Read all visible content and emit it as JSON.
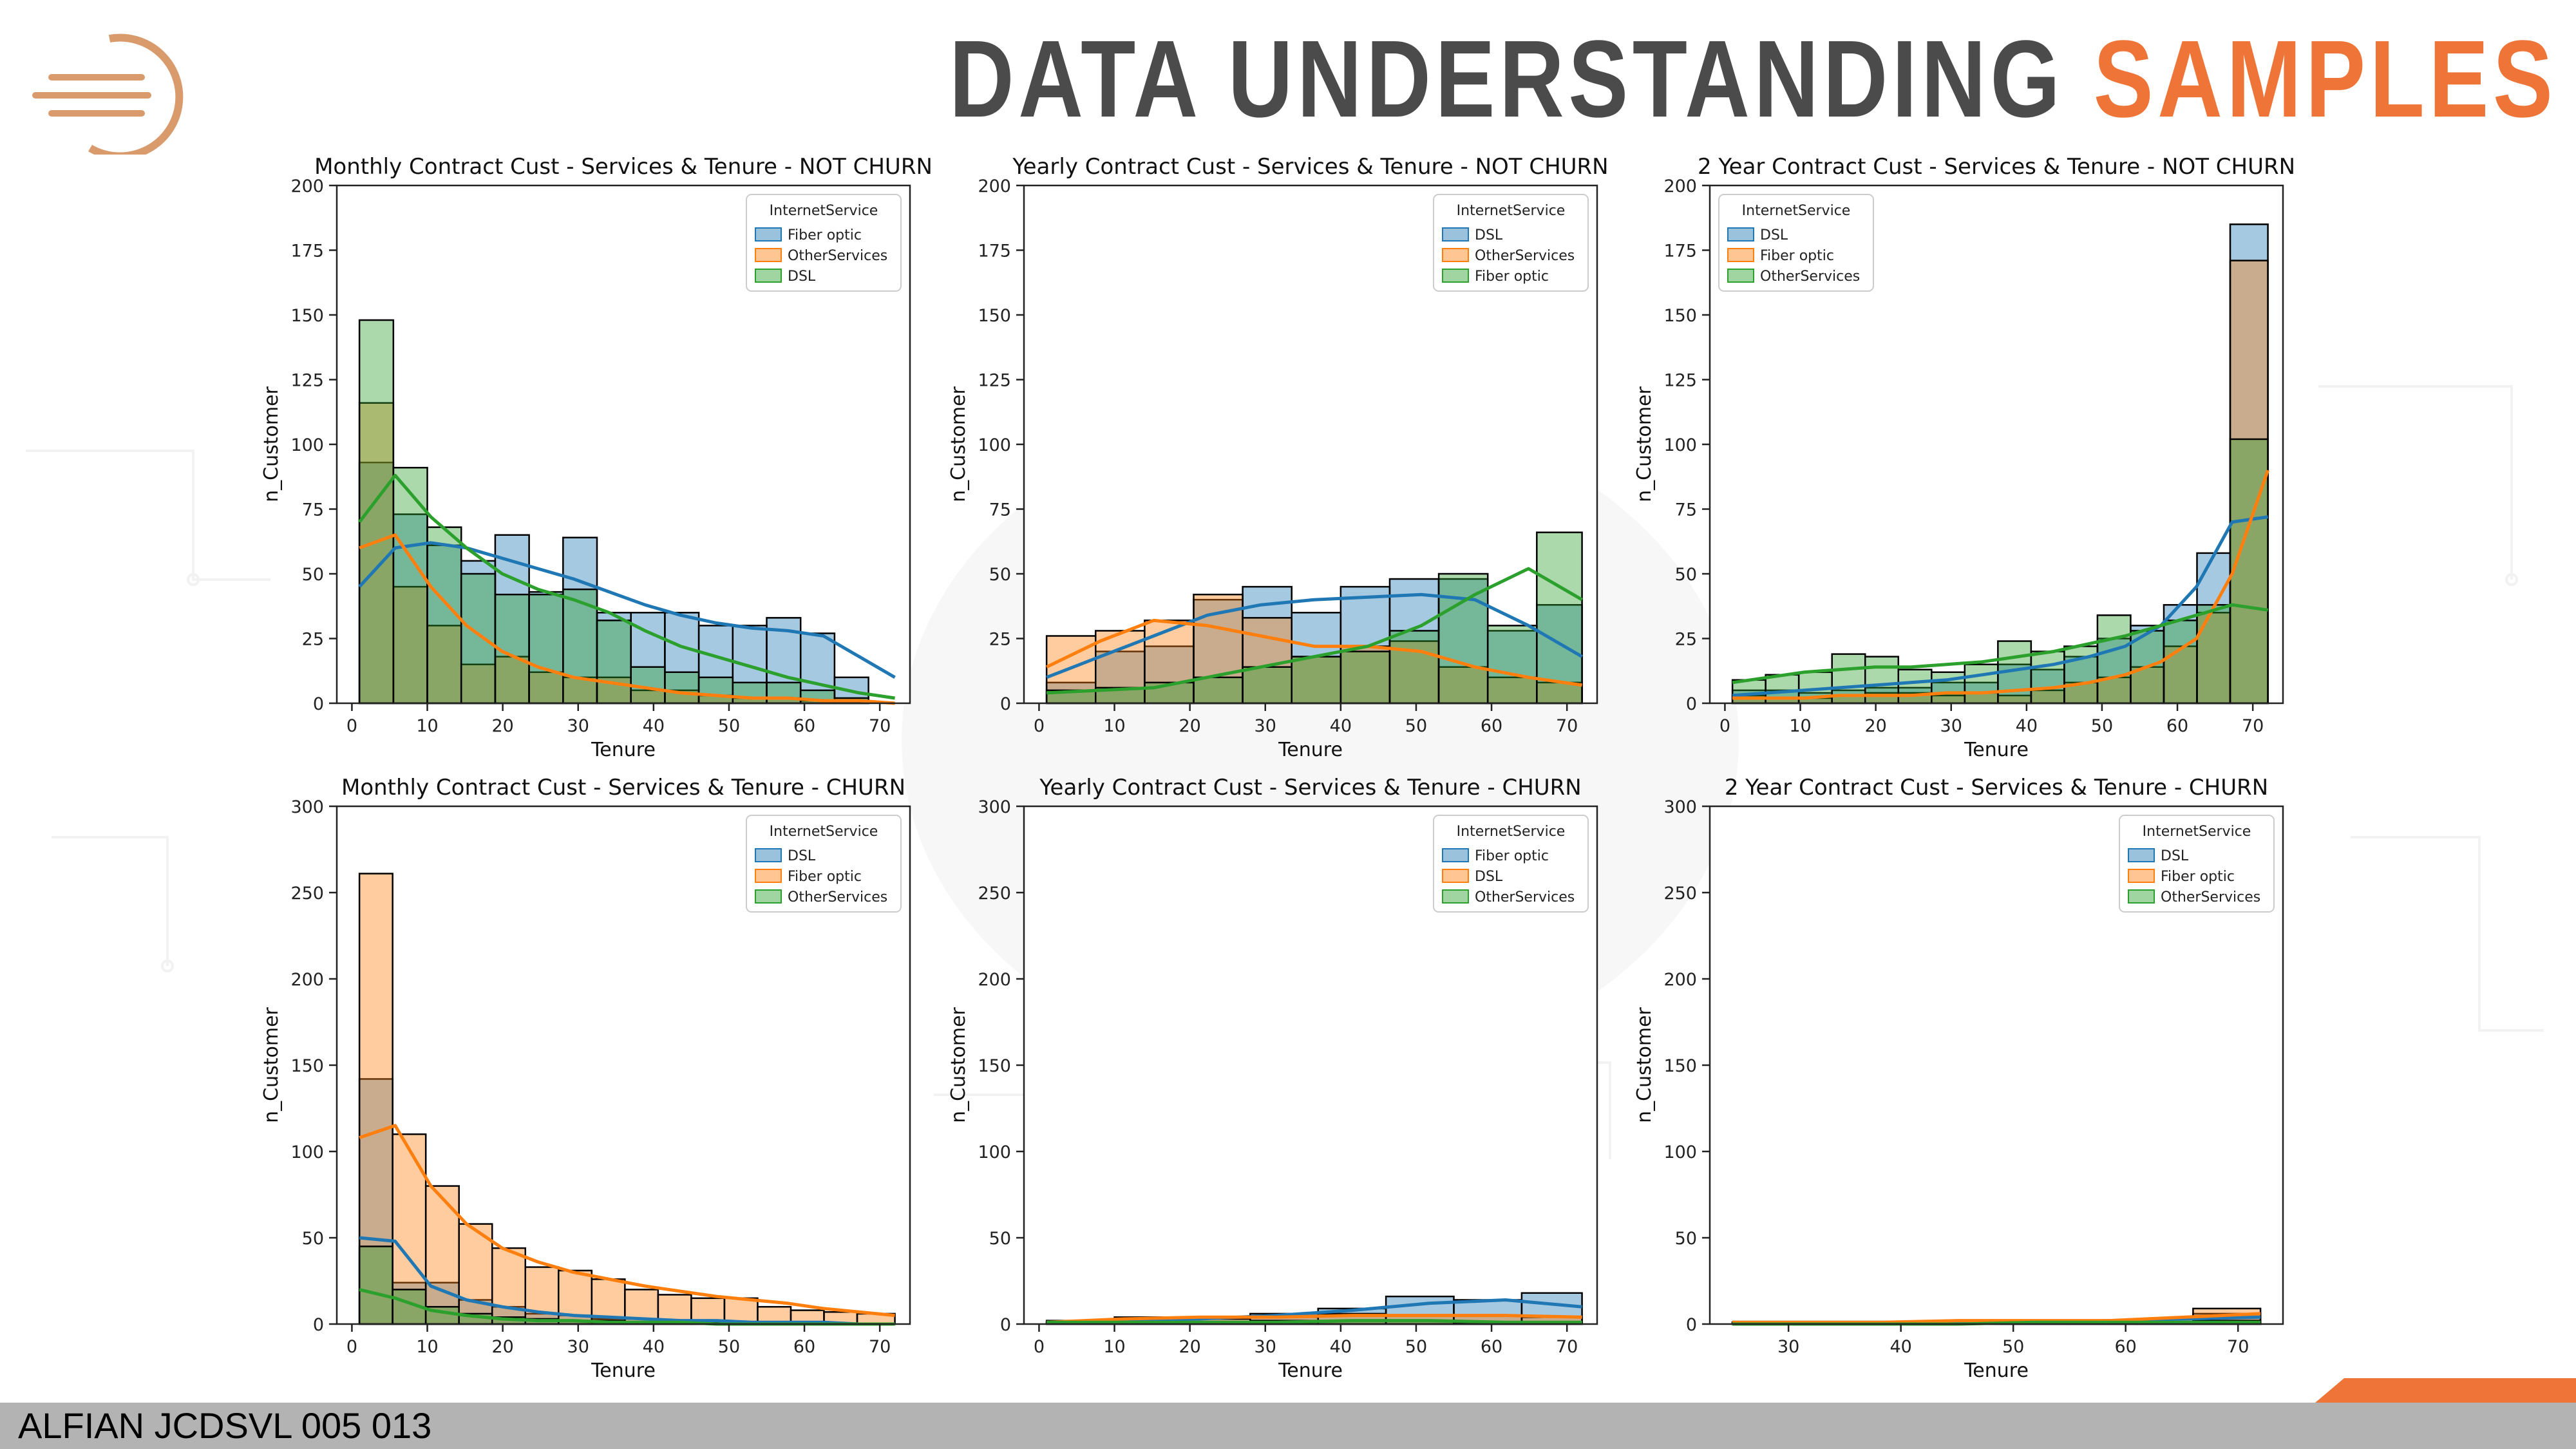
{
  "header": {
    "title_part1": "DATA UNDERSTANDING",
    "title_part2": "SAMPLES"
  },
  "footer": {
    "text": "ALFIAN JCDSVL 005 013"
  },
  "colors": {
    "accent": "#ee7437",
    "title_dark": "#4b4b4b",
    "blue": "#1f77b4",
    "orange": "#ff7f0e",
    "green": "#2ca02c"
  },
  "chart_data": [
    {
      "type": "bar",
      "title": "Monthly Contract Cust - Services & Tenure - NOT CHURN",
      "xlabel": "Tenure",
      "ylabel": "n_Customer",
      "xlim": [
        -2,
        74
      ],
      "ylim": [
        0,
        200
      ],
      "xticks": [
        0,
        10,
        20,
        30,
        40,
        50,
        60,
        70
      ],
      "yticks": [
        0,
        25,
        50,
        75,
        100,
        125,
        150,
        175,
        200
      ],
      "legend_title": "InternetService",
      "legend_position": "top-right",
      "bin_edges": [
        1,
        5.5,
        10,
        14.5,
        19,
        23.5,
        28,
        32.5,
        37,
        41.5,
        46,
        50.5,
        55,
        59.5,
        64,
        68.5,
        72
      ],
      "series": [
        {
          "name": "Fiber optic",
          "color": "#1f77b4",
          "values": [
            93,
            73,
            61,
            55,
            65,
            43,
            64,
            35,
            35,
            35,
            30,
            30,
            33,
            27,
            10,
            0
          ],
          "kde": [
            45,
            60,
            62,
            60,
            56,
            52,
            48,
            43,
            38,
            34,
            31,
            29,
            28,
            26,
            18,
            10
          ]
        },
        {
          "name": "OtherServices",
          "color": "#ff7f0e",
          "values": [
            116,
            45,
            30,
            15,
            18,
            12,
            10,
            10,
            5,
            5,
            3,
            2,
            2,
            1,
            1,
            0
          ],
          "kde": [
            60,
            65,
            45,
            30,
            20,
            14,
            10,
            8,
            6,
            4,
            3,
            2,
            2,
            1,
            1,
            0
          ]
        },
        {
          "name": "DSL",
          "color": "#2ca02c",
          "values": [
            148,
            91,
            68,
            50,
            42,
            42,
            44,
            32,
            14,
            12,
            10,
            8,
            8,
            5,
            2,
            0
          ],
          "kde": [
            70,
            88,
            72,
            60,
            50,
            44,
            40,
            35,
            28,
            22,
            18,
            14,
            10,
            7,
            4,
            2
          ]
        }
      ]
    },
    {
      "type": "bar",
      "title": "Yearly Contract Cust - Services & Tenure - NOT CHURN",
      "xlabel": "Tenure",
      "ylabel": "n_Customer",
      "xlim": [
        -2,
        74
      ],
      "ylim": [
        0,
        200
      ],
      "xticks": [
        0,
        10,
        20,
        30,
        40,
        50,
        60,
        70
      ],
      "yticks": [
        0,
        25,
        50,
        75,
        100,
        125,
        150,
        175,
        200
      ],
      "legend_title": "InternetService",
      "legend_position": "top-right",
      "bin_edges": [
        1,
        7.5,
        14,
        20.5,
        27,
        33.5,
        40,
        46.5,
        53,
        59.5,
        66,
        72
      ],
      "series": [
        {
          "name": "DSL",
          "color": "#1f77b4",
          "values": [
            8,
            20,
            22,
            40,
            45,
            35,
            45,
            48,
            48,
            28,
            38
          ],
          "kde": [
            10,
            18,
            26,
            34,
            38,
            40,
            41,
            42,
            40,
            30,
            18
          ]
        },
        {
          "name": "OtherServices",
          "color": "#ff7f0e",
          "values": [
            26,
            28,
            32,
            42,
            33,
            18,
            22,
            24,
            14,
            10,
            8
          ],
          "kde": [
            14,
            24,
            32,
            30,
            26,
            22,
            22,
            20,
            14,
            10,
            7
          ]
        },
        {
          "name": "Fiber optic",
          "color": "#2ca02c",
          "values": [
            5,
            6,
            8,
            10,
            14,
            18,
            20,
            28,
            50,
            30,
            66
          ],
          "kde": [
            4,
            5,
            6,
            10,
            14,
            18,
            22,
            30,
            42,
            52,
            40
          ]
        }
      ]
    },
    {
      "type": "bar",
      "title": "2 Year Contract Cust - Services & Tenure - NOT CHURN",
      "xlabel": "Tenure",
      "ylabel": "n_Customer",
      "xlim": [
        -2,
        74
      ],
      "ylim": [
        0,
        200
      ],
      "xticks": [
        0,
        10,
        20,
        30,
        40,
        50,
        60,
        70
      ],
      "yticks": [
        0,
        25,
        50,
        75,
        100,
        125,
        150,
        175,
        200
      ],
      "legend_title": "InternetService",
      "legend_position": "top-left",
      "bin_edges": [
        1,
        5.4,
        9.8,
        14.2,
        18.6,
        23,
        27.4,
        31.8,
        36.2,
        40.6,
        45,
        49.4,
        53.8,
        58.2,
        62.6,
        67,
        72
      ],
      "series": [
        {
          "name": "DSL",
          "color": "#1f77b4",
          "values": [
            5,
            5,
            4,
            5,
            6,
            6,
            8,
            8,
            15,
            13,
            18,
            25,
            30,
            38,
            58,
            185
          ],
          "kde": [
            3,
            4,
            5,
            6,
            7,
            8,
            9,
            11,
            13,
            15,
            18,
            22,
            30,
            45,
            70,
            72
          ]
        },
        {
          "name": "Fiber optic",
          "color": "#ff7f0e",
          "values": [
            3,
            2,
            2,
            3,
            4,
            4,
            3,
            4,
            3,
            5,
            8,
            10,
            14,
            22,
            35,
            171
          ],
          "kde": [
            2,
            2,
            2,
            3,
            3,
            3,
            4,
            4,
            5,
            6,
            8,
            11,
            16,
            25,
            50,
            90
          ]
        },
        {
          "name": "OtherServices",
          "color": "#2ca02c",
          "values": [
            9,
            11,
            12,
            19,
            18,
            13,
            12,
            15,
            24,
            20,
            22,
            34,
            28,
            32,
            38,
            102
          ],
          "kde": [
            8,
            10,
            12,
            13,
            14,
            14,
            15,
            16,
            18,
            20,
            23,
            26,
            30,
            34,
            38,
            36
          ]
        }
      ]
    },
    {
      "type": "bar",
      "title": "Monthly Contract Cust - Services & Tenure - CHURN",
      "xlabel": "Tenure",
      "ylabel": "n_Customer",
      "xlim": [
        -2,
        74
      ],
      "ylim": [
        0,
        300
      ],
      "xticks": [
        0,
        10,
        20,
        30,
        40,
        50,
        60,
        70
      ],
      "yticks": [
        0,
        50,
        100,
        150,
        200,
        250,
        300
      ],
      "legend_title": "InternetService",
      "legend_position": "top-right",
      "bin_edges": [
        1,
        5.4,
        9.8,
        14.2,
        18.6,
        23,
        27.4,
        31.8,
        36.2,
        40.6,
        45,
        49.4,
        53.8,
        58.2,
        62.6,
        67,
        72
      ],
      "series": [
        {
          "name": "DSL",
          "color": "#1f77b4",
          "values": [
            142,
            24,
            24,
            14,
            10,
            6,
            5,
            3,
            3,
            2,
            2,
            1,
            1,
            1,
            0,
            0
          ],
          "kde": [
            50,
            48,
            22,
            14,
            10,
            7,
            5,
            4,
            3,
            2,
            2,
            1,
            1,
            1,
            0,
            0
          ]
        },
        {
          "name": "Fiber optic",
          "color": "#ff7f0e",
          "values": [
            261,
            110,
            80,
            58,
            44,
            33,
            31,
            26,
            20,
            17,
            15,
            15,
            10,
            8,
            7,
            6
          ],
          "kde": [
            108,
            115,
            80,
            58,
            44,
            36,
            30,
            26,
            22,
            19,
            16,
            14,
            12,
            9,
            7,
            5
          ]
        },
        {
          "name": "OtherServices",
          "color": "#2ca02c",
          "values": [
            45,
            20,
            10,
            6,
            4,
            3,
            2,
            2,
            1,
            1,
            1,
            0,
            0,
            0,
            0,
            0
          ],
          "kde": [
            20,
            15,
            8,
            5,
            3,
            2,
            2,
            1,
            1,
            1,
            0,
            0,
            0,
            0,
            0,
            0
          ]
        }
      ]
    },
    {
      "type": "bar",
      "title": "Yearly Contract Cust - Services & Tenure - CHURN",
      "xlabel": "Tenure",
      "ylabel": "n_Customer",
      "xlim": [
        -2,
        74
      ],
      "ylim": [
        0,
        300
      ],
      "xticks": [
        0,
        10,
        20,
        30,
        40,
        50,
        60,
        70
      ],
      "yticks": [
        0,
        50,
        100,
        150,
        200,
        250,
        300
      ],
      "legend_title": "InternetService",
      "legend_position": "top-right",
      "bin_edges": [
        1,
        10,
        19,
        28,
        37,
        46,
        55,
        64,
        72
      ],
      "series": [
        {
          "name": "Fiber optic",
          "color": "#1f77b4",
          "values": [
            1,
            3,
            4,
            6,
            9,
            16,
            14,
            18
          ],
          "kde": [
            1,
            2,
            3,
            5,
            8,
            12,
            14,
            10
          ]
        },
        {
          "name": "DSL",
          "color": "#ff7f0e",
          "values": [
            2,
            4,
            3,
            4,
            6,
            5,
            5,
            4
          ],
          "kde": [
            1,
            3,
            4,
            4,
            5,
            5,
            5,
            4
          ]
        },
        {
          "name": "OtherServices",
          "color": "#2ca02c",
          "values": [
            1,
            1,
            1,
            2,
            2,
            2,
            1,
            1
          ],
          "kde": [
            1,
            1,
            1,
            1,
            2,
            2,
            1,
            1
          ]
        }
      ]
    },
    {
      "type": "bar",
      "title": "2 Year Contract Cust - Services & Tenure - CHURN",
      "xlabel": "Tenure",
      "ylabel": "n_Customer",
      "xlim": [
        23,
        74
      ],
      "ylim": [
        0,
        300
      ],
      "xticks": [
        30,
        40,
        50,
        60,
        70
      ],
      "yticks": [
        0,
        50,
        100,
        150,
        200,
        250,
        300
      ],
      "legend_title": "InternetService",
      "legend_position": "top-right",
      "bin_edges": [
        25,
        31,
        37,
        43,
        49,
        55,
        61,
        66,
        72
      ],
      "series": [
        {
          "name": "DSL",
          "color": "#1f77b4",
          "values": [
            1,
            0,
            1,
            1,
            1,
            2,
            3,
            6
          ],
          "kde": [
            1,
            1,
            1,
            1,
            1,
            2,
            3,
            4
          ]
        },
        {
          "name": "Fiber optic",
          "color": "#ff7f0e",
          "values": [
            0,
            1,
            1,
            2,
            2,
            2,
            3,
            9
          ],
          "kde": [
            1,
            1,
            1,
            2,
            2,
            2,
            4,
            6
          ]
        },
        {
          "name": "OtherServices",
          "color": "#2ca02c",
          "values": [
            0,
            0,
            0,
            0,
            1,
            1,
            1,
            2
          ],
          "kde": [
            0,
            0,
            0,
            0,
            1,
            1,
            1,
            1
          ]
        }
      ]
    }
  ]
}
